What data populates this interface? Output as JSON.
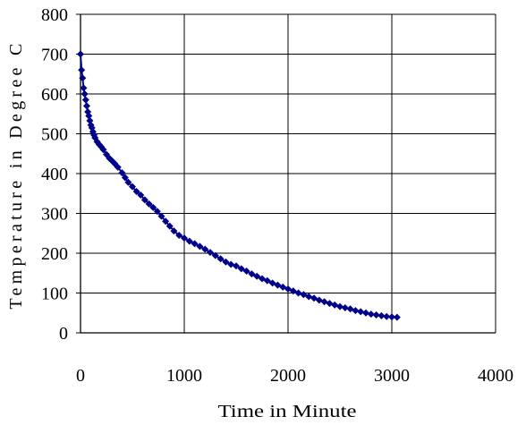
{
  "chart_data": {
    "type": "scatter",
    "title": "",
    "xlabel": "Time in Minute",
    "ylabel": "Temperature in Degree C",
    "xlim": [
      0,
      4000
    ],
    "ylim": [
      0,
      800
    ],
    "x_ticks": [
      0,
      1000,
      2000,
      3000,
      4000
    ],
    "y_ticks": [
      0,
      100,
      200,
      300,
      400,
      500,
      600,
      700,
      800
    ],
    "grid": true,
    "legend": "none",
    "series": [
      {
        "color": "#00008b",
        "marker": "diamond",
        "points": [
          [
            0,
            700
          ],
          [
            10,
            660
          ],
          [
            20,
            640
          ],
          [
            30,
            615
          ],
          [
            40,
            600
          ],
          [
            50,
            585
          ],
          [
            60,
            570
          ],
          [
            70,
            555
          ],
          [
            80,
            545
          ],
          [
            90,
            533
          ],
          [
            100,
            522
          ],
          [
            110,
            515
          ],
          [
            120,
            505
          ],
          [
            130,
            497
          ],
          [
            140,
            490
          ],
          [
            160,
            480
          ],
          [
            180,
            473
          ],
          [
            200,
            467
          ],
          [
            220,
            460
          ],
          [
            250,
            448
          ],
          [
            280,
            438
          ],
          [
            300,
            433
          ],
          [
            330,
            425
          ],
          [
            360,
            416
          ],
          [
            400,
            402
          ],
          [
            430,
            390
          ],
          [
            460,
            378
          ],
          [
            500,
            367
          ],
          [
            540,
            355
          ],
          [
            580,
            346
          ],
          [
            620,
            334
          ],
          [
            660,
            324
          ],
          [
            700,
            315
          ],
          [
            740,
            305
          ],
          [
            780,
            293
          ],
          [
            820,
            280
          ],
          [
            860,
            268
          ],
          [
            900,
            256
          ],
          [
            950,
            245
          ],
          [
            1000,
            238
          ],
          [
            1050,
            230
          ],
          [
            1100,
            224
          ],
          [
            1150,
            217
          ],
          [
            1200,
            210
          ],
          [
            1250,
            202
          ],
          [
            1300,
            194
          ],
          [
            1350,
            186
          ],
          [
            1400,
            178
          ],
          [
            1450,
            172
          ],
          [
            1500,
            168
          ],
          [
            1550,
            161
          ],
          [
            1600,
            155
          ],
          [
            1650,
            148
          ],
          [
            1700,
            142
          ],
          [
            1750,
            136
          ],
          [
            1800,
            131
          ],
          [
            1850,
            125
          ],
          [
            1900,
            120
          ],
          [
            1950,
            115
          ],
          [
            2000,
            110
          ],
          [
            2050,
            105
          ],
          [
            2100,
            100
          ],
          [
            2150,
            96
          ],
          [
            2200,
            91
          ],
          [
            2250,
            87
          ],
          [
            2300,
            82
          ],
          [
            2350,
            78
          ],
          [
            2400,
            74
          ],
          [
            2450,
            70
          ],
          [
            2500,
            66
          ],
          [
            2550,
            63
          ],
          [
            2600,
            60
          ],
          [
            2650,
            56
          ],
          [
            2700,
            53
          ],
          [
            2750,
            50
          ],
          [
            2800,
            47
          ],
          [
            2850,
            45
          ],
          [
            2900,
            43
          ],
          [
            2950,
            41
          ],
          [
            3000,
            40
          ],
          [
            3050,
            39
          ]
        ]
      }
    ]
  }
}
